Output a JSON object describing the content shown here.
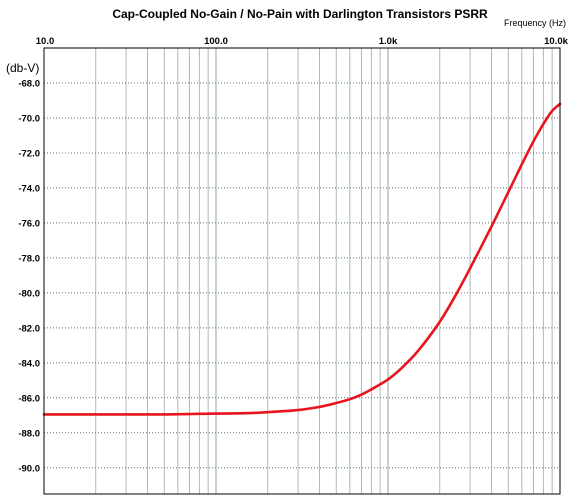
{
  "chart_data": {
    "type": "line",
    "title": "Cap-Coupled No-Gain / No-Pain with Darlington Transistors PSRR",
    "xlabel": "Frequency   (Hz)",
    "ylabel": "(db-V)",
    "x_scale": "log",
    "xlim": [
      10,
      10000
    ],
    "ylim": [
      -91.5,
      -66
    ],
    "x_tick_labels": [
      {
        "value": 10,
        "label": "10.0"
      },
      {
        "value": 100,
        "label": "100.0"
      },
      {
        "value": 1000,
        "label": "1.0k"
      },
      {
        "value": 10000,
        "label": "10.0k"
      }
    ],
    "y_tick_labels": [
      {
        "value": -68,
        "label": "-68.0"
      },
      {
        "value": -70,
        "label": "-70.0"
      },
      {
        "value": -72,
        "label": "-72.0"
      },
      {
        "value": -74,
        "label": "-74.0"
      },
      {
        "value": -76,
        "label": "-76.0"
      },
      {
        "value": -78,
        "label": "-78.0"
      },
      {
        "value": -80,
        "label": "-80.0"
      },
      {
        "value": -82,
        "label": "-82.0"
      },
      {
        "value": -84,
        "label": "-84.0"
      },
      {
        "value": -86,
        "label": "-86.0"
      },
      {
        "value": -88,
        "label": "-88.0"
      },
      {
        "value": -90,
        "label": "-90.0"
      }
    ],
    "grid": true,
    "colors": {
      "line": "#e8141e",
      "grid": "#9aa9aa",
      "axis": "#000000",
      "background": "#ffffff"
    },
    "series": [
      {
        "x": [
          10,
          20,
          50,
          100,
          150,
          200,
          300,
          400,
          500,
          600,
          700,
          800,
          1000,
          1200,
          1500,
          2000,
          2500,
          3000,
          4000,
          5000,
          6000,
          7000,
          8000,
          9000,
          10000
        ],
        "y": [
          -86.95,
          -86.95,
          -86.95,
          -86.9,
          -86.88,
          -86.82,
          -86.7,
          -86.52,
          -86.3,
          -86.08,
          -85.82,
          -85.52,
          -84.95,
          -84.3,
          -83.3,
          -81.65,
          -80.05,
          -78.6,
          -76.2,
          -74.25,
          -72.65,
          -71.35,
          -70.35,
          -69.6,
          -69.2
        ]
      }
    ]
  }
}
